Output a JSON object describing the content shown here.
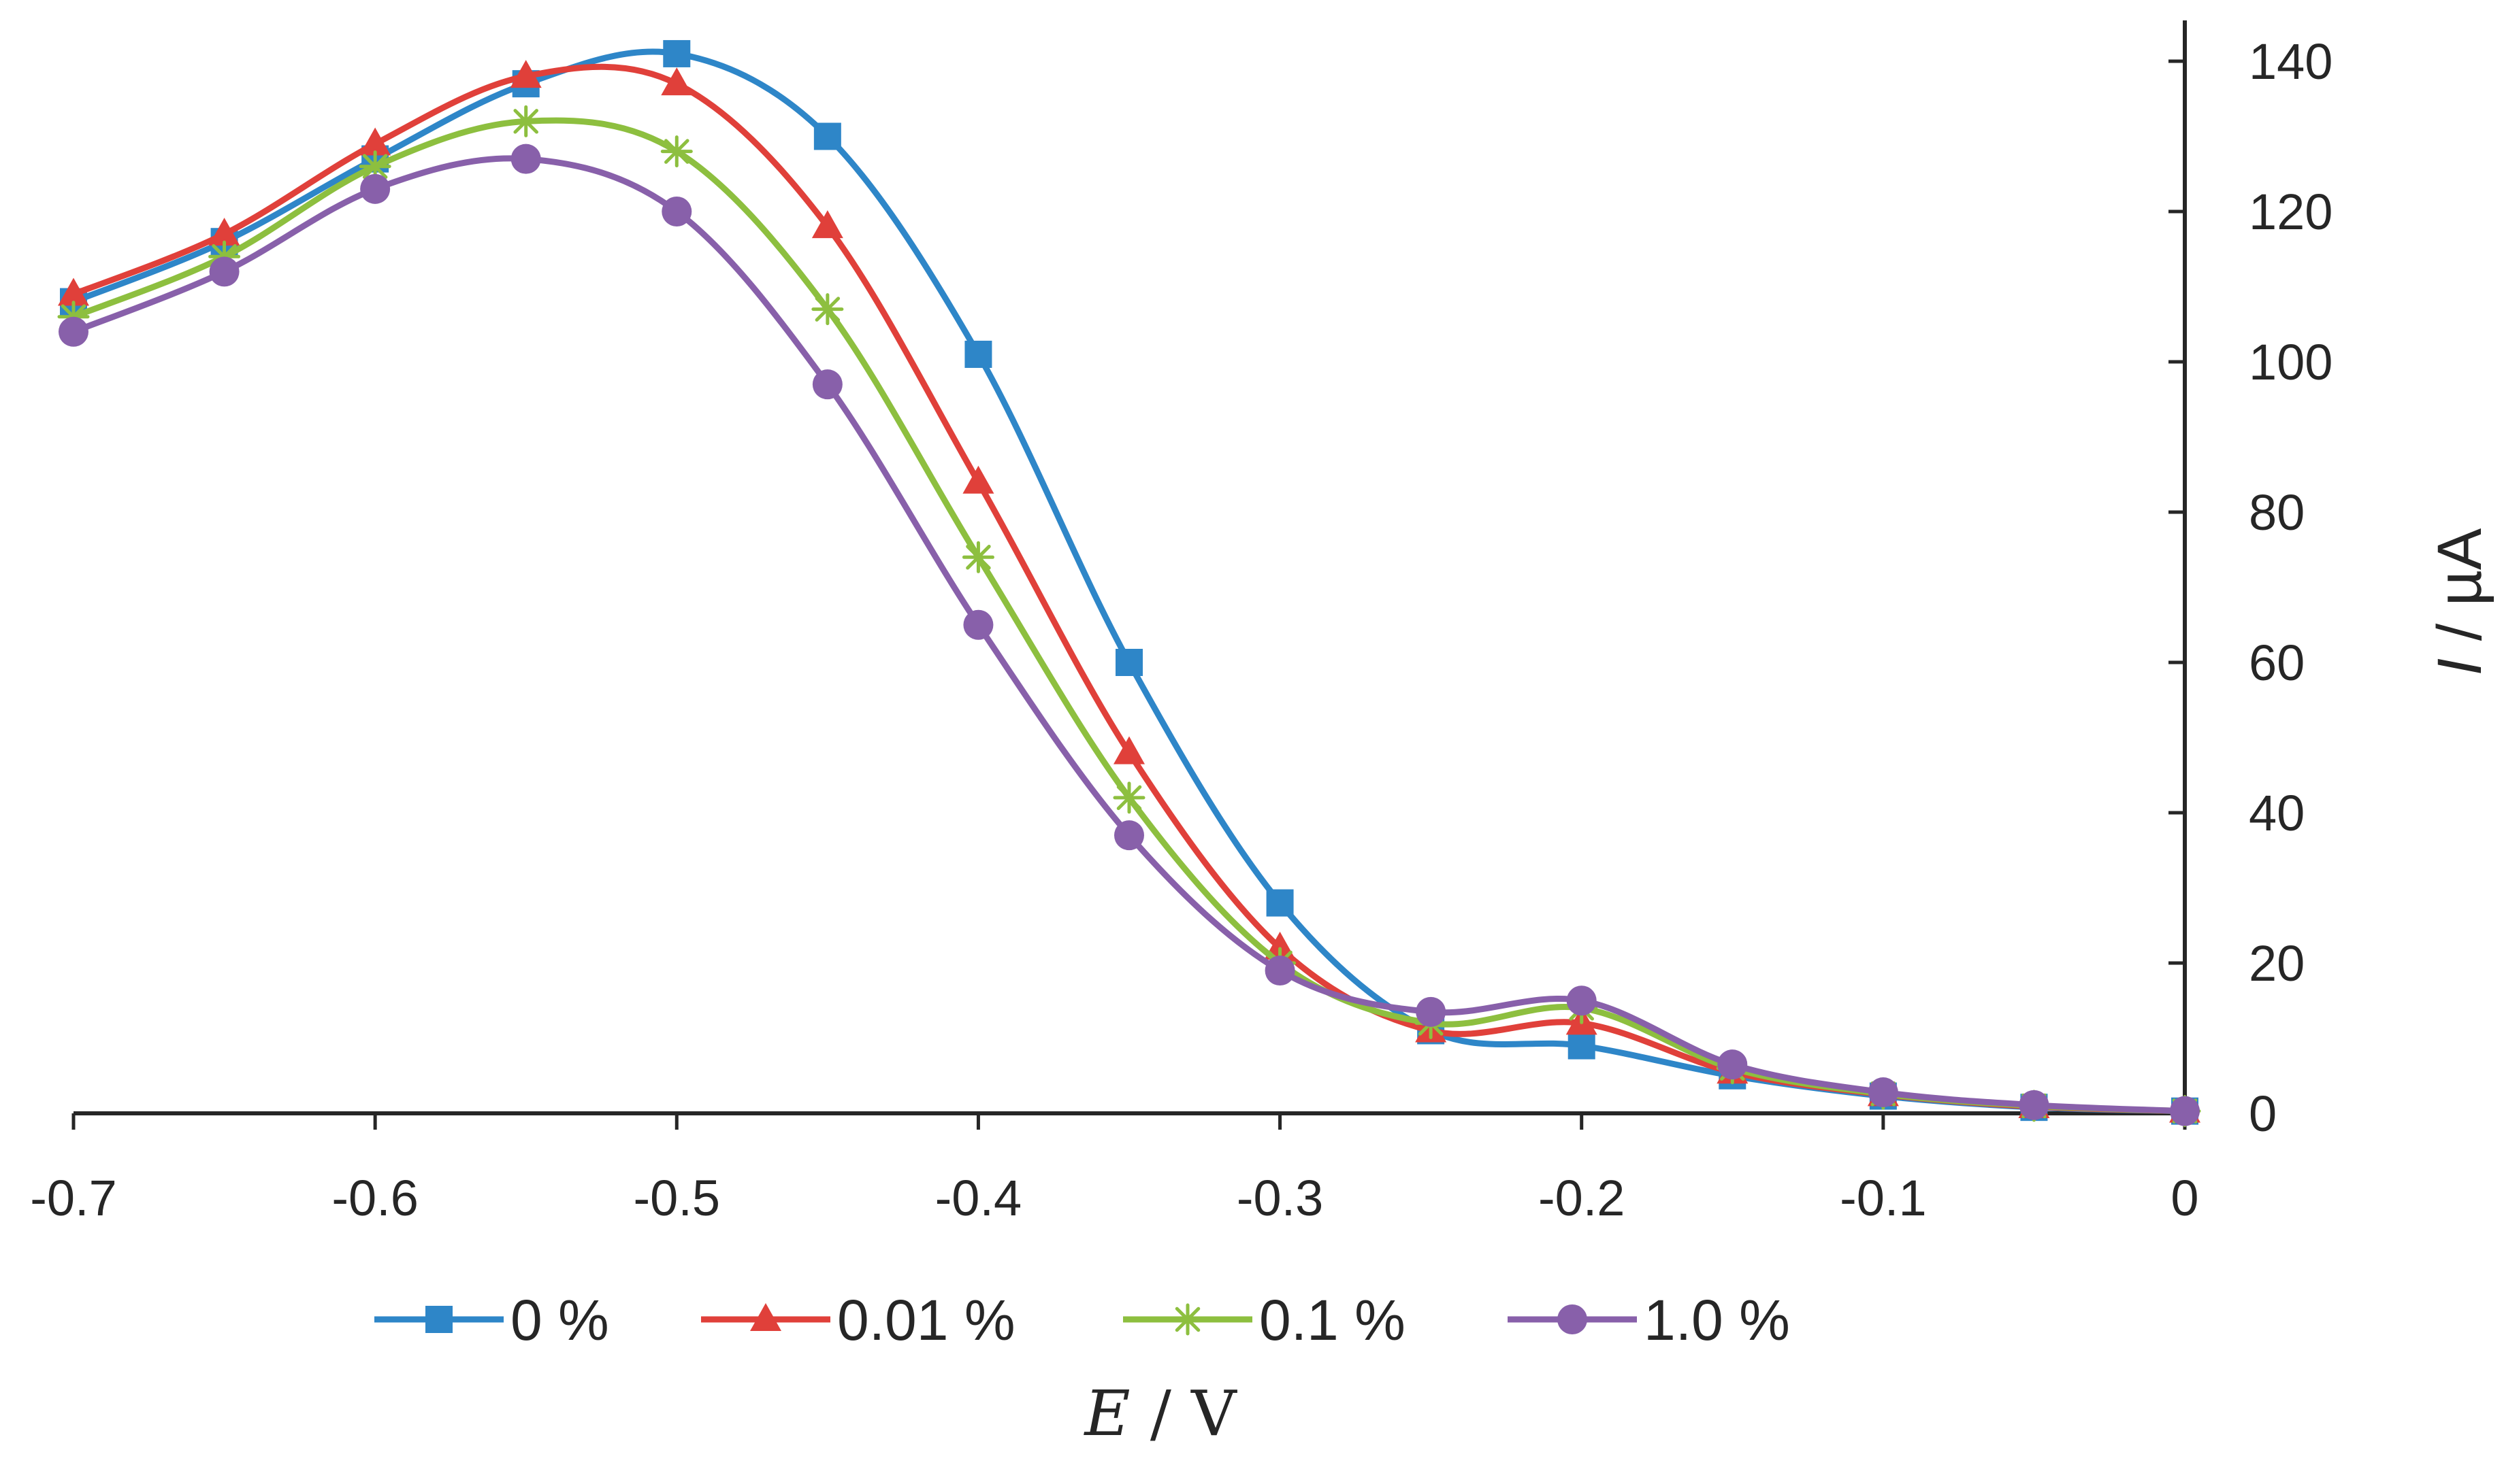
{
  "chart_data": {
    "type": "line",
    "title": "",
    "xlabel_var": "E",
    "xlabel_unit": " / V",
    "ylabel_var": "I",
    "ylabel_unit": " / µA",
    "xlim": [
      -0.7,
      0
    ],
    "ylim": [
      0,
      140
    ],
    "x_ticks": [
      -0.7,
      -0.6,
      -0.5,
      -0.4,
      -0.3,
      -0.2,
      -0.1,
      0
    ],
    "x_tick_labels": [
      "-0.7",
      "-0.6",
      "-0.5",
      "-0.4",
      "-0.3",
      "-0.2",
      "-0.1",
      "0"
    ],
    "y_ticks": [
      0,
      20,
      40,
      60,
      80,
      100,
      120,
      140
    ],
    "y_tick_labels": [
      "0",
      "20",
      "40",
      "60",
      "80",
      "100",
      "120",
      "140"
    ],
    "y_axis_position": "right",
    "grid": false,
    "legend_position": "bottom",
    "x": [
      -0.7,
      -0.65,
      -0.6,
      -0.55,
      -0.5,
      -0.45,
      -0.4,
      -0.35,
      -0.3,
      -0.25,
      -0.2,
      -0.15,
      -0.1,
      -0.05,
      0
    ],
    "series": [
      {
        "name": "0 %",
        "color": "#2E86C8",
        "marker": "square",
        "values": [
          108,
          116,
          127,
          137,
          141,
          130,
          101,
          60,
          28,
          11,
          9,
          5,
          2.3,
          0.8,
          0.3
        ]
      },
      {
        "name": "0.01 %",
        "color": "#E0403A",
        "marker": "triangle",
        "values": [
          109,
          117,
          129,
          138,
          137,
          118,
          84,
          48,
          22,
          11,
          12,
          5.5,
          2.5,
          0.9,
          0.3
        ]
      },
      {
        "name": "0.1 %",
        "color": "#8DBF3F",
        "marker": "asterisk",
        "values": [
          106,
          114,
          126,
          132,
          128,
          107,
          74,
          42,
          20,
          12,
          14,
          6,
          2.6,
          1,
          0.3
        ]
      },
      {
        "name": "1.0 %",
        "color": "#8860AA",
        "marker": "circle",
        "values": [
          104,
          112,
          123,
          127,
          120,
          97,
          65,
          37,
          19,
          13.5,
          15,
          6.5,
          2.8,
          1.1,
          0.3
        ]
      }
    ]
  }
}
